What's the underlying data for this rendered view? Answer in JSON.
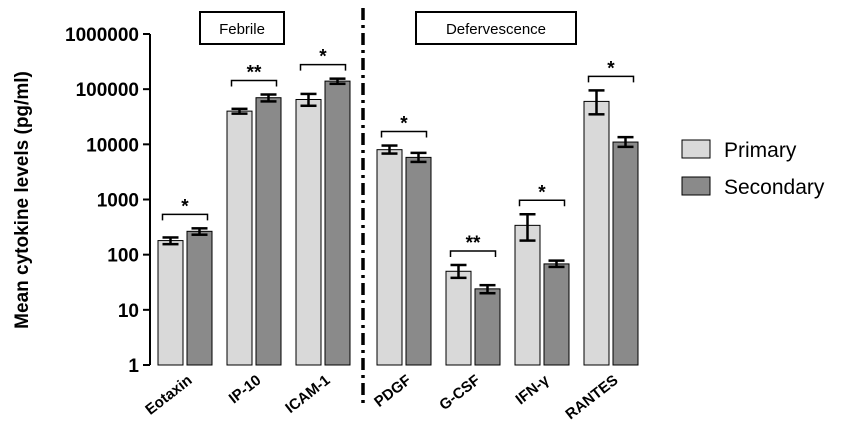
{
  "chart_data": {
    "type": "bar",
    "ylabel": "Mean cytokine levels (pg/ml)",
    "yscale": "log",
    "ylim": [
      1,
      1000000
    ],
    "yticks": [
      "1",
      "10",
      "100",
      "1000",
      "10000",
      "100000",
      "1000000"
    ],
    "categories": [
      "Eotaxin",
      "IP-10",
      "ICAM-1",
      "PDGF",
      "G-CSF",
      "IFN-γ",
      "RANTES"
    ],
    "panels": [
      {
        "label": "Febrile",
        "categories": [
          "Eotaxin",
          "IP-10",
          "ICAM-1"
        ]
      },
      {
        "label": "Defervescence",
        "categories": [
          "PDGF",
          "G-CSF",
          "IFN-γ",
          "RANTES"
        ]
      }
    ],
    "series": [
      {
        "name": "Primary",
        "color": "#d9d9d9",
        "values": [
          180,
          40000,
          65000,
          8000,
          50,
          340,
          60000
        ],
        "err_low": [
          155,
          36000,
          50000,
          6800,
          38,
          180,
          35000
        ],
        "err_high": [
          205,
          44000,
          82000,
          9500,
          65,
          540,
          95000
        ]
      },
      {
        "name": "Secondary",
        "color": "#8a8a8a",
        "values": [
          265,
          70000,
          140000,
          5800,
          24,
          68,
          11000
        ],
        "err_low": [
          230,
          60000,
          125000,
          4800,
          20,
          60,
          9000
        ],
        "err_high": [
          300,
          80000,
          155000,
          7000,
          28,
          78,
          13500
        ]
      }
    ],
    "significance": [
      "*",
      "**",
      "*",
      "*",
      "**",
      "*",
      "*"
    ],
    "legend_position": "right",
    "grid": false
  }
}
